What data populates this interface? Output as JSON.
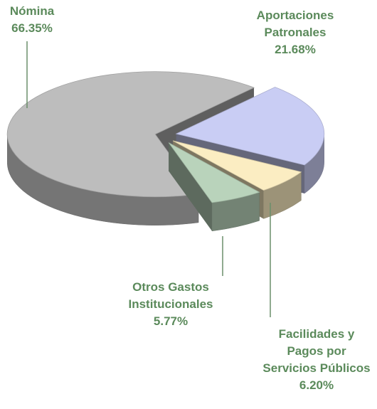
{
  "chart_data": {
    "type": "pie",
    "categories": [
      "Nómina",
      "Aportaciones Patronales",
      "Facilidades y Pagos por Servicios Públicos",
      "Otros Gastos Institucionales"
    ],
    "values": [
      66.35,
      21.68,
      6.2,
      5.77
    ],
    "value_labels": [
      "66.35%",
      "21.68%",
      "6.20%",
      "5.77%"
    ],
    "colors": [
      "#bdbdbd",
      "#c9cdf4",
      "#fbedc2",
      "#b9d3bb"
    ]
  }
}
